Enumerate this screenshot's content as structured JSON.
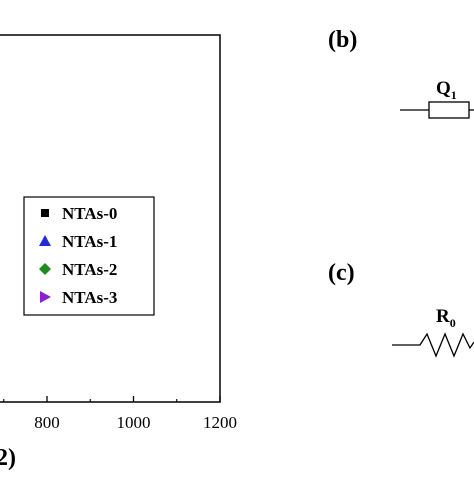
{
  "chart_data": {
    "type": "scatter",
    "xticks": [
      "800",
      "1000",
      "1200"
    ],
    "xlim": [
      600,
      1200
    ],
    "xlabel": "2)",
    "legend": {
      "placement": "bottom-right",
      "entries": [
        {
          "name": "NTAs-0",
          "marker": "square",
          "color": "#000000"
        },
        {
          "name": "NTAs-1",
          "marker": "triangle-up",
          "color": "#1f2bd6"
        },
        {
          "name": "NTAs-2",
          "marker": "diamond",
          "color": "#1f8a1f"
        },
        {
          "name": "NTAs-3",
          "marker": "triangle-right",
          "color": "#8a1fd6"
        }
      ]
    },
    "series": [
      {
        "name": "NTAs-0",
        "values": []
      },
      {
        "name": "NTAs-1",
        "values": []
      },
      {
        "name": "NTAs-2",
        "values": []
      },
      {
        "name": "NTAs-3",
        "values": []
      }
    ]
  },
  "panels": {
    "b": {
      "label": "(b)",
      "element_label": "Q",
      "element_sub": "1"
    },
    "c": {
      "label": "(c)",
      "element_label": "R",
      "element_sub": "0"
    }
  }
}
